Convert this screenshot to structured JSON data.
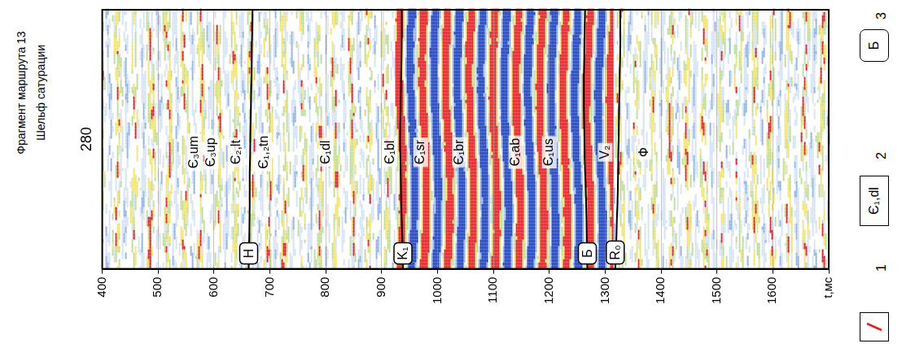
{
  "chart_data": {
    "type": "line",
    "title": "Фрагмент маршрута 13",
    "subtitle": "Шельф сатурации",
    "categories": [
      null,
      null,
      null,
      null,
      "280",
      null,
      null,
      null,
      null
    ],
    "series": [
      {
        "name": "Н",
        "color": "#000000",
        "values": [
          662,
          663,
          664,
          664,
          665,
          666,
          667,
          668,
          669
        ]
      },
      {
        "name": "K₁",
        "color": "#000000",
        "values": [
          938,
          937,
          935,
          934,
          933,
          934,
          935,
          936,
          936
        ]
      },
      {
        "name": "Б",
        "color": "#000000",
        "values": [
          1268,
          1267,
          1266,
          1264,
          1263,
          1262,
          1262,
          1263,
          1264
        ]
      },
      {
        "name": "R₀",
        "color": "#000000",
        "values": [
          1318,
          1320,
          1322,
          1323,
          1324,
          1325,
          1326,
          1327,
          1327
        ]
      }
    ],
    "ylim": [
      400,
      1700
    ],
    "yticks": [
      400,
      500,
      600,
      700,
      800,
      900,
      1000,
      1100,
      1200,
      1300,
      1400,
      1500,
      1600,
      {
        "value": 1700,
        "label": "t,мс"
      }
    ],
    "grid": true,
    "annotations": [
      {
        "text": "Є₃um",
        "y": 565
      },
      {
        "text": "Є₃up",
        "y": 595
      },
      {
        "text": "Є₂,lt",
        "y": 640
      },
      {
        "text": "Є₁,₂tn",
        "y": 690
      },
      {
        "text": "Є₁dl",
        "y": 800
      },
      {
        "text": "Є₁bl",
        "y": 915
      },
      {
        "text": "Є₁sr",
        "y": 970
      },
      {
        "text": "Є₁br",
        "y": 1040
      },
      {
        "text": "Є₁ab",
        "y": 1140
      },
      {
        "text": "Є₁us",
        "y": 1200
      },
      {
        "text": "V₂",
        "y": 1300
      },
      {
        "text": "Ф",
        "y": 1370
      }
    ],
    "key": [
      {
        "label": "1",
        "marker": "square",
        "line_style": "solid",
        "color": "#e02020"
      },
      {
        "label": "2",
        "marker": "square",
        "text": "Є₁,dl"
      },
      {
        "label": "3",
        "marker": "rounded",
        "text": "Б"
      }
    ]
  }
}
